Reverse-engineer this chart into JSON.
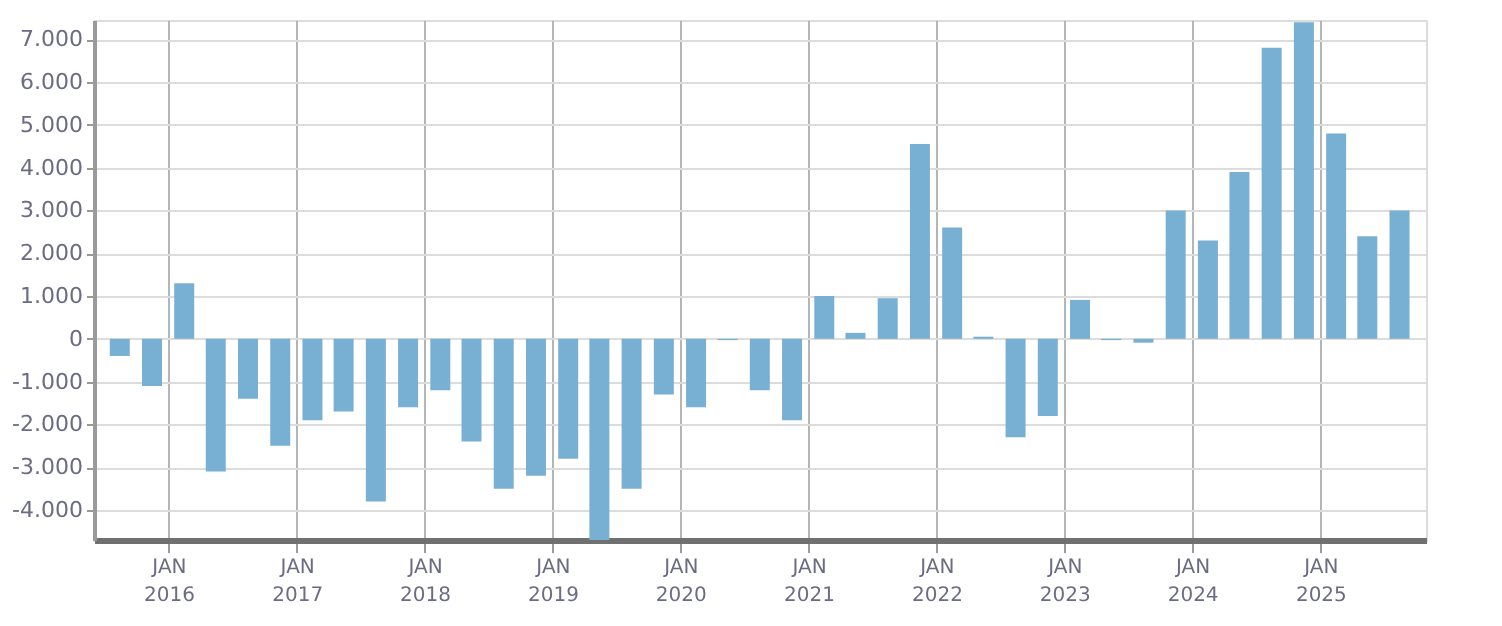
{
  "chart_data": {
    "type": "bar",
    "x": [
      "2015-08-15",
      "2015-11-15",
      "2016-02-15",
      "2016-05-15",
      "2016-08-15",
      "2016-11-15",
      "2017-02-15",
      "2017-05-15",
      "2017-08-15",
      "2017-11-15",
      "2018-02-15",
      "2018-05-15",
      "2018-08-15",
      "2018-11-15",
      "2019-02-15",
      "2019-05-15",
      "2019-08-15",
      "2019-11-15",
      "2020-02-15",
      "2020-05-15",
      "2020-08-15",
      "2020-11-15",
      "2021-02-15",
      "2021-05-15",
      "2021-08-15",
      "2021-11-15",
      "2022-02-15",
      "2022-05-15",
      "2022-08-15",
      "2022-11-15",
      "2023-02-15",
      "2023-05-15",
      "2023-08-15",
      "2023-11-15",
      "2024-02-15",
      "2024-05-15",
      "2024-08-15",
      "2024-11-15",
      "2025-02-15",
      "2025-05-15",
      "2025-08-15"
    ],
    "series": [
      {
        "color": "#78b0d3",
        "values": [
          -400,
          -1100,
          1300,
          -3100,
          -1400,
          -2500,
          -1900,
          -1700,
          -3800,
          -1600,
          -1200,
          -2400,
          -3500,
          -3200,
          -2800,
          -4700,
          -3500,
          -1300,
          -1600,
          -30,
          -1200,
          -1900,
          1000,
          140,
          950,
          4550,
          2600,
          50,
          -2300,
          -1800,
          910,
          -30,
          -90,
          3000,
          2300,
          3900,
          6800,
          7400,
          4800,
          2400,
          3000
        ]
      }
    ],
    "xlim": [
      "2015-07-01",
      "2025-10-01"
    ],
    "xticks": [
      {
        "value": "2016-01-01",
        "label": "JAN\n2016"
      },
      {
        "value": "2017-01-01",
        "label": "JAN\n2017"
      },
      {
        "value": "2018-01-01",
        "label": "JAN\n2018"
      },
      {
        "value": "2019-01-01",
        "label": "JAN\n2019"
      },
      {
        "value": "2020-01-01",
        "label": "JAN\n2020"
      },
      {
        "value": "2021-01-01",
        "label": "JAN\n2021"
      },
      {
        "value": "2022-01-01",
        "label": "JAN\n2022"
      },
      {
        "value": "2023-01-01",
        "label": "JAN\n2023"
      },
      {
        "value": "2024-01-01",
        "label": "JAN\n2024"
      },
      {
        "value": "2025-01-01",
        "label": "JAN\n2025"
      }
    ],
    "ylim": [
      -4700,
      7450
    ],
    "yticks": [
      {
        "value": -4000,
        "label": "-4.000"
      },
      {
        "value": -3000,
        "label": "-3.000"
      },
      {
        "value": -2000,
        "label": "-2.000"
      },
      {
        "value": -1000,
        "label": "-1.000"
      },
      0,
      {
        "value": 1000,
        "label": "1.000"
      },
      {
        "value": 2000,
        "label": "2.000"
      },
      {
        "value": 3000,
        "label": "3.000"
      },
      {
        "value": 4000,
        "label": "4.000"
      },
      {
        "value": 5000,
        "label": "5.000"
      },
      {
        "value": 6000,
        "label": "6.000"
      },
      {
        "value": 7000,
        "label": "7.000"
      }
    ],
    "grid": true,
    "legend": false
  }
}
